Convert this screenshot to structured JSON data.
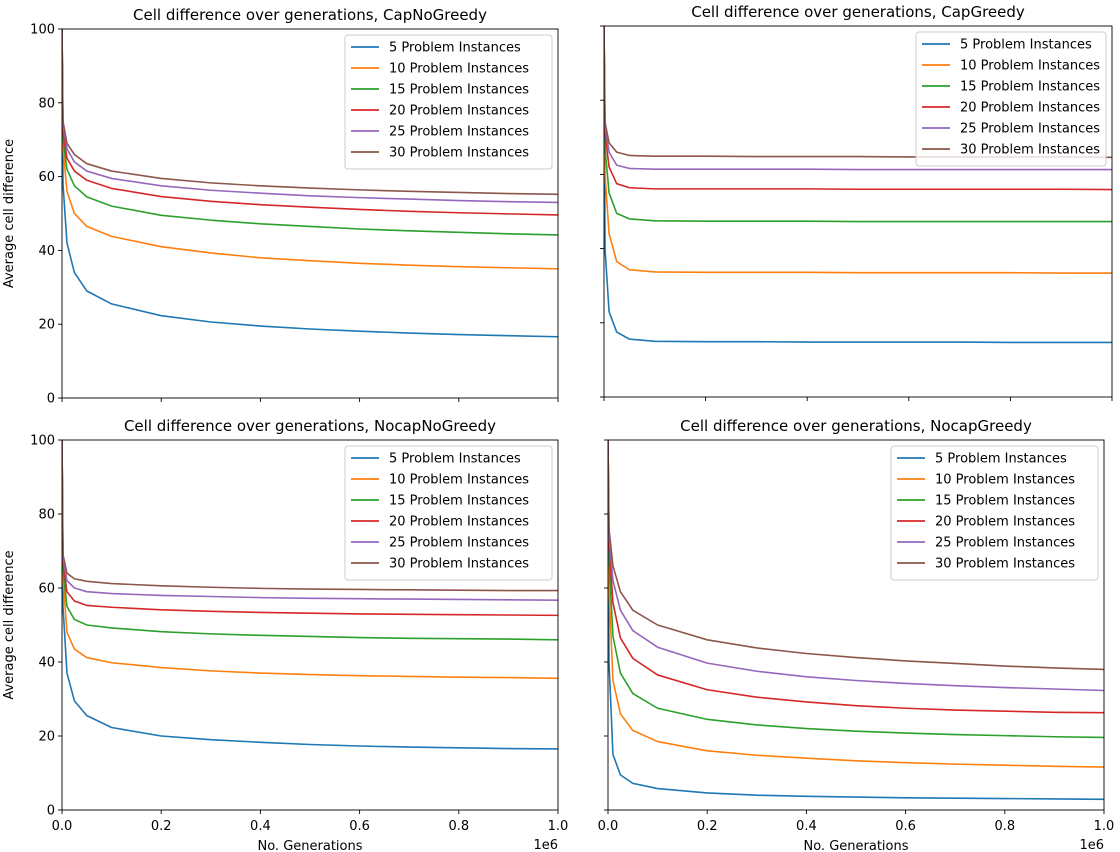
{
  "figure": {
    "colors": [
      "#1f77b4",
      "#ff7f0e",
      "#2ca02c",
      "#d62728",
      "#9467bd",
      "#8c564b"
    ]
  },
  "chart_data": [
    {
      "type": "line",
      "title": "Cell difference over generations, CapNoGreedy",
      "xlabel": "",
      "ylabel": "Average cell difference",
      "xlim": [
        0,
        1000000
      ],
      "ylim": [
        0,
        100
      ],
      "x_tick_labels_shown": false,
      "y_tick_labels_shown": true,
      "x_offset_label": "",
      "legend_position": "upper right",
      "x": [
        0,
        2000,
        10000,
        25000,
        50000,
        100000,
        200000,
        300000,
        400000,
        500000,
        600000,
        700000,
        800000,
        900000,
        1000000
      ],
      "series": [
        {
          "name": "5 Problem Instances",
          "values": [
            100,
            58,
            42,
            34,
            29,
            25.5,
            22.3,
            20.6,
            19.5,
            18.7,
            18.1,
            17.6,
            17.2,
            16.9,
            16.6
          ]
        },
        {
          "name": "10 Problem Instances",
          "values": [
            100,
            68,
            56,
            50,
            46.5,
            43.8,
            41,
            39.3,
            38,
            37.2,
            36.5,
            36,
            35.6,
            35.3,
            35
          ]
        },
        {
          "name": "15 Problem Instances",
          "values": [
            100,
            70,
            62,
            57.5,
            54.5,
            52,
            49.5,
            48.2,
            47.2,
            46.5,
            45.8,
            45.3,
            44.9,
            44.5,
            44.2
          ]
        },
        {
          "name": "20 Problem Instances",
          "values": [
            100,
            72,
            65,
            61.5,
            59,
            56.8,
            54.6,
            53.3,
            52.4,
            51.7,
            51.1,
            50.6,
            50.2,
            49.9,
            49.6
          ]
        },
        {
          "name": "25 Problem Instances",
          "values": [
            100,
            74,
            67.5,
            64,
            61.5,
            59.5,
            57.5,
            56.3,
            55.5,
            54.8,
            54.3,
            53.9,
            53.5,
            53.2,
            53
          ]
        },
        {
          "name": "30 Problem Instances",
          "values": [
            100,
            75,
            69,
            66,
            63.5,
            61.5,
            59.5,
            58.3,
            57.5,
            56.9,
            56.4,
            56,
            55.7,
            55.4,
            55.2
          ]
        }
      ]
    },
    {
      "type": "line",
      "title": "Cell difference over generations, CapGreedy",
      "xlabel": "",
      "ylabel": "",
      "xlim": [
        0,
        1000000
      ],
      "ylim": [
        0,
        100
      ],
      "x_tick_labels_shown": false,
      "y_tick_labels_shown": false,
      "x_offset_label": "",
      "legend_position": "upper right",
      "x": [
        0,
        2000,
        10000,
        25000,
        50000,
        100000,
        200000,
        300000,
        400000,
        500000,
        600000,
        700000,
        800000,
        900000,
        1000000
      ],
      "series": [
        {
          "name": "5 Problem Instances",
          "values": [
            100,
            40,
            23,
            17.5,
            15.6,
            15,
            14.9,
            14.9,
            14.8,
            14.8,
            14.8,
            14.8,
            14.7,
            14.7,
            14.7
          ]
        },
        {
          "name": "10 Problem Instances",
          "values": [
            100,
            60,
            44,
            36.5,
            34.3,
            33.7,
            33.6,
            33.6,
            33.6,
            33.5,
            33.5,
            33.5,
            33.5,
            33.4,
            33.4
          ]
        },
        {
          "name": "15 Problem Instances",
          "values": [
            100,
            67,
            55,
            49.5,
            48,
            47.5,
            47.4,
            47.4,
            47.4,
            47.3,
            47.3,
            47.3,
            47.3,
            47.3,
            47.3
          ]
        },
        {
          "name": "20 Problem Instances",
          "values": [
            100,
            71,
            62,
            57.5,
            56.4,
            56.1,
            56.1,
            56.1,
            56.1,
            56,
            56,
            56,
            56,
            56,
            55.9
          ]
        },
        {
          "name": "25 Problem Instances",
          "values": [
            100,
            73,
            66,
            62.5,
            61.6,
            61.4,
            61.4,
            61.4,
            61.4,
            61.3,
            61.3,
            61.3,
            61.3,
            61.3,
            61.3
          ]
        },
        {
          "name": "30 Problem Instances",
          "values": [
            100,
            74,
            68.5,
            66,
            65.1,
            64.9,
            64.9,
            64.8,
            64.8,
            64.8,
            64.7,
            64.7,
            64.7,
            64.7,
            64.6
          ]
        }
      ]
    },
    {
      "type": "line",
      "title": "Cell difference over generations, NocapNoGreedy",
      "xlabel": "No. Generations",
      "ylabel": "Average cell difference",
      "xlim": [
        0,
        1000000
      ],
      "ylim": [
        0,
        100
      ],
      "x_tick_labels_shown": true,
      "y_tick_labels_shown": true,
      "x_offset_label": "1e6",
      "legend_position": "upper right",
      "x": [
        0,
        2000,
        10000,
        25000,
        50000,
        100000,
        200000,
        300000,
        400000,
        500000,
        600000,
        700000,
        800000,
        900000,
        1000000
      ],
      "series": [
        {
          "name": "5 Problem Instances",
          "values": [
            100,
            55,
            37,
            29.5,
            25.5,
            22.3,
            20,
            19,
            18.3,
            17.7,
            17.3,
            17,
            16.8,
            16.6,
            16.5
          ]
        },
        {
          "name": "10 Problem Instances",
          "values": [
            100,
            63,
            48,
            43.5,
            41.2,
            39.8,
            38.5,
            37.6,
            37,
            36.6,
            36.3,
            36.1,
            35.9,
            35.8,
            35.6
          ]
        },
        {
          "name": "15 Problem Instances",
          "values": [
            100,
            65,
            55,
            51.5,
            50,
            49.2,
            48.2,
            47.6,
            47.2,
            46.9,
            46.6,
            46.4,
            46.3,
            46.2,
            46
          ]
        },
        {
          "name": "20 Problem Instances",
          "values": [
            100,
            67,
            59,
            56.5,
            55.3,
            54.8,
            54.1,
            53.7,
            53.4,
            53.2,
            53,
            52.9,
            52.8,
            52.7,
            52.6
          ]
        },
        {
          "name": "25 Problem Instances",
          "values": [
            100,
            68,
            62,
            60,
            59,
            58.5,
            58,
            57.7,
            57.4,
            57.2,
            57.1,
            57,
            56.9,
            56.8,
            56.7
          ]
        },
        {
          "name": "30 Problem Instances",
          "values": [
            100,
            69,
            64,
            62.5,
            61.8,
            61.2,
            60.6,
            60.2,
            59.9,
            59.7,
            59.6,
            59.5,
            59.4,
            59.3,
            59.3
          ]
        }
      ]
    },
    {
      "type": "line",
      "title": "Cell difference over generations, NocapGreedy",
      "xlabel": "No. Generations",
      "ylabel": "",
      "xlim": [
        0,
        1000000
      ],
      "ylim": [
        0,
        100
      ],
      "x_tick_labels_shown": true,
      "y_tick_labels_shown": false,
      "x_offset_label": "1e6",
      "legend_position": "upper right",
      "x": [
        0,
        2000,
        10000,
        25000,
        50000,
        100000,
        200000,
        300000,
        400000,
        500000,
        600000,
        700000,
        800000,
        900000,
        1000000
      ],
      "series": [
        {
          "name": "5 Problem Instances",
          "values": [
            100,
            40,
            15,
            9.5,
            7.2,
            5.8,
            4.6,
            4,
            3.7,
            3.5,
            3.3,
            3.2,
            3.1,
            3,
            2.9
          ]
        },
        {
          "name": "10 Problem Instances",
          "values": [
            100,
            60,
            35,
            26,
            21.5,
            18.5,
            16,
            14.8,
            14,
            13.3,
            12.8,
            12.4,
            12.1,
            11.8,
            11.6
          ]
        },
        {
          "name": "15 Problem Instances",
          "values": [
            100,
            68,
            47,
            37,
            31.5,
            27.5,
            24.5,
            23,
            22,
            21.3,
            20.8,
            20.4,
            20.1,
            19.8,
            19.6
          ]
        },
        {
          "name": "20 Problem Instances",
          "values": [
            100,
            72,
            56,
            46.5,
            41,
            36.5,
            32.5,
            30.5,
            29.2,
            28.2,
            27.5,
            27,
            26.7,
            26.4,
            26.3
          ]
        },
        {
          "name": "25 Problem Instances",
          "values": [
            100,
            74,
            62,
            54,
            48.5,
            44,
            39.7,
            37.5,
            36,
            35,
            34.2,
            33.6,
            33.1,
            32.7,
            32.3
          ]
        },
        {
          "name": "30 Problem Instances",
          "values": [
            100,
            76,
            66,
            59,
            54,
            50,
            46,
            43.8,
            42.3,
            41.2,
            40.3,
            39.6,
            38.9,
            38.4,
            38
          ]
        }
      ]
    }
  ]
}
